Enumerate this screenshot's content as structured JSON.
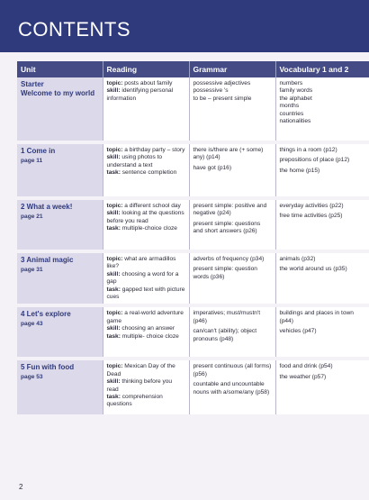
{
  "page": {
    "title": "CONTENTS",
    "page_number": "2"
  },
  "columns": {
    "unit": "Unit",
    "reading": "Reading",
    "grammar": "Grammar",
    "vocabulary": "Vocabulary 1 and 2"
  },
  "units": [
    {
      "title": "Starter",
      "subtitle": "Welcome to my world",
      "page": "",
      "reading": [
        {
          "label": "topic:",
          "text": "posts about family"
        },
        {
          "label": "skill:",
          "text": "identifying personal information"
        }
      ],
      "grammar": [
        "possessive adjectives",
        "possessive 's",
        "to be – present simple"
      ],
      "vocab": [
        "numbers",
        "family words",
        "the alphabet",
        "months",
        "countries",
        "nationalities"
      ]
    },
    {
      "title": "1 Come in",
      "subtitle": "",
      "page": "page 11",
      "reading": [
        {
          "label": "topic:",
          "text": "a birthday party – story"
        },
        {
          "label": "skill:",
          "text": "using photos to understand a text"
        },
        {
          "label": "task:",
          "text": "sentence completion"
        }
      ],
      "grammar": [
        "there is/there are (+ some) any) (p14)",
        "have got (p16)"
      ],
      "vocab": [
        "things in a room (p12)",
        "prepositions of place (p12)",
        "the home (p15)"
      ]
    },
    {
      "title": "2 What a week!",
      "subtitle": "",
      "page": "page 21",
      "reading": [
        {
          "label": "topic:",
          "text": "a different school day"
        },
        {
          "label": "skill:",
          "text": "looking at the questions before you read"
        },
        {
          "label": "task:",
          "text": "multiple-choice cloze"
        }
      ],
      "grammar": [
        "present simple: positive and negative (p24)",
        "present simple: questions and short answers (p26)"
      ],
      "vocab": [
        "everyday activities (p22)",
        "free time activities (p25)"
      ]
    },
    {
      "title": "3 Animal magic",
      "subtitle": "",
      "page": "page 31",
      "reading": [
        {
          "label": "topic:",
          "text": "what are armadillos like?"
        },
        {
          "label": "skill:",
          "text": "choosing a word for a gap"
        },
        {
          "label": "task:",
          "text": "gapped text with picture cues"
        }
      ],
      "grammar": [
        "adverbs of frequency (p34)",
        "present simple: question words (p36)"
      ],
      "vocab": [
        "animals (p32)",
        "the world around us (p35)"
      ]
    },
    {
      "title": "4 Let's explore",
      "subtitle": "",
      "page": "page 43",
      "reading": [
        {
          "label": "topic:",
          "text": "a real-world adventure game"
        },
        {
          "label": "skill:",
          "text": "choosing an answer"
        },
        {
          "label": "task:",
          "text": "multiple- choice cloze"
        }
      ],
      "grammar": [
        "imperatives; must/mustn't (p46)",
        "can/can't (ability); object pronouns (p48)"
      ],
      "vocab": [
        "buildings and places in town (p44)",
        "vehicles (p47)"
      ]
    },
    {
      "title": "5 Fun with food",
      "subtitle": "",
      "page": "page 53",
      "reading": [
        {
          "label": "topic:",
          "text": "Mexican Day of the Dead"
        },
        {
          "label": "skill:",
          "text": "thinking before you read"
        },
        {
          "label": "task:",
          "text": "comprehension questions"
        }
      ],
      "grammar": [
        "present continuous (all forms) (p56)",
        "countable and uncountable nouns with a/some/any (p58)"
      ],
      "vocab": [
        "food and drink (p54)",
        "the weather (p57)"
      ]
    }
  ]
}
